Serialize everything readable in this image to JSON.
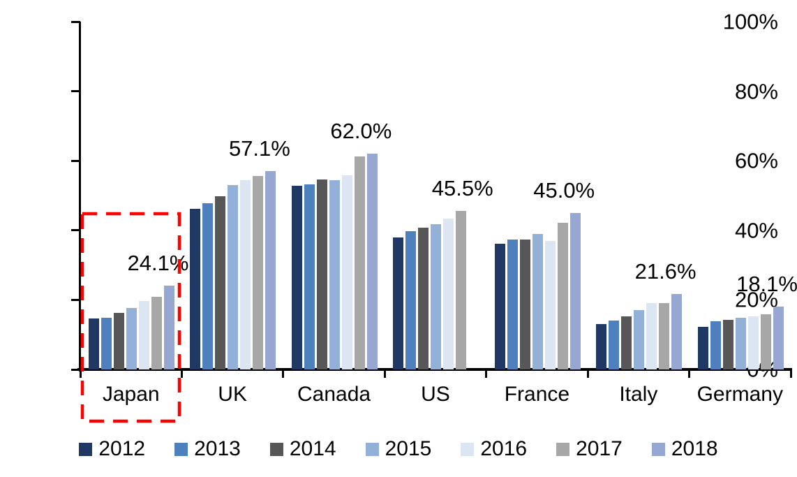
{
  "chart_data": {
    "type": "bar",
    "title": "",
    "xlabel": "",
    "ylabel": "",
    "ylim": [
      0,
      100
    ],
    "grid": false,
    "y_tick_labels": [
      "0%",
      "20%",
      "40%",
      "60%",
      "80%",
      "100%"
    ],
    "y_tick_values": [
      0,
      20,
      40,
      60,
      80,
      100
    ],
    "categories": [
      "Japan",
      "UK",
      "Canada",
      "US",
      "France",
      "Italy",
      "Germany"
    ],
    "series": [
      {
        "name": "2012",
        "color": "#1F3864",
        "values": [
          14.6,
          46.2,
          52.8,
          38.0,
          36.2,
          13.0,
          12.3
        ]
      },
      {
        "name": "2013",
        "color": "#4E80BD",
        "values": [
          14.8,
          47.7,
          53.2,
          39.7,
          37.4,
          14.0,
          13.9
        ]
      },
      {
        "name": "2014",
        "color": "#575757",
        "values": [
          16.3,
          49.8,
          54.6,
          40.8,
          37.4,
          15.3,
          14.3
        ]
      },
      {
        "name": "2015",
        "color": "#93B1D8",
        "values": [
          17.7,
          53.0,
          54.5,
          41.8,
          39.0,
          17.0,
          14.9
        ]
      },
      {
        "name": "2016",
        "color": "#DCE6F2",
        "values": [
          19.7,
          54.4,
          55.8,
          43.3,
          37.0,
          19.0,
          15.3
        ]
      },
      {
        "name": "2017",
        "color": "#A7A7A7",
        "values": [
          20.9,
          55.6,
          61.2,
          45.5,
          42.2,
          19.1,
          15.8
        ]
      },
      {
        "name": "2018",
        "color": "#96A8D2",
        "values": [
          24.1,
          57.1,
          62.0,
          null,
          45.0,
          21.6,
          18.1
        ]
      }
    ],
    "data_labels": [
      "24.1%",
      "57.1%",
      "62.0%",
      "45.5%",
      "45.0%",
      "21.6%",
      "18.1%"
    ],
    "legend": {
      "position": "bottom",
      "entries": [
        "2012",
        "2013",
        "2014",
        "2015",
        "2016",
        "2017",
        "2018"
      ]
    },
    "annotation": {
      "type": "dashed-box",
      "target_category": "Japan",
      "color": "#FF0000"
    },
    "colors": {
      "axis": "#000000",
      "text": "#000000",
      "background": "#FFFFFF",
      "highlight": "#FF0000"
    }
  }
}
